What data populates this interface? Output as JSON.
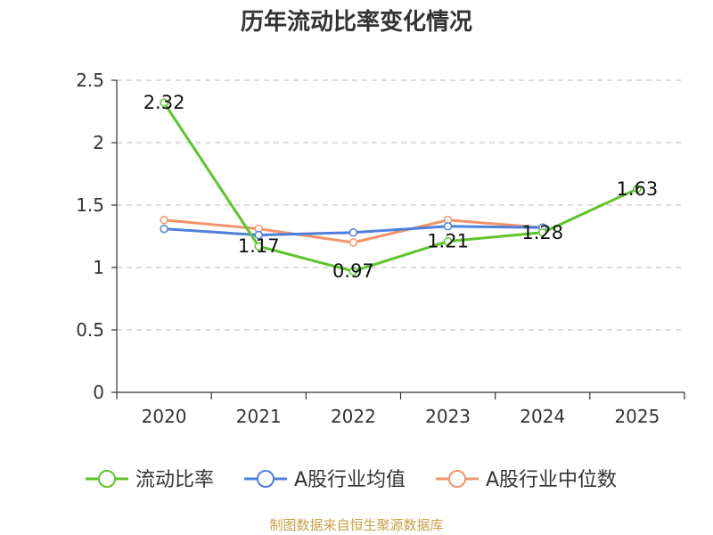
{
  "chart_data": {
    "type": "line",
    "title": "历年流动比率变化情况",
    "categories": [
      "2020",
      "2021",
      "2022",
      "2023",
      "2024",
      "2025"
    ],
    "ylim": [
      0,
      2.5
    ],
    "yticks": [
      "0",
      "0.5",
      "1",
      "1.5",
      "2",
      "2.5"
    ],
    "grid": true,
    "legend_position": "bottom",
    "series": [
      {
        "name": "流动比率",
        "color": "#5cc52a",
        "values": [
          2.32,
          1.17,
          0.97,
          1.21,
          1.28,
          1.63
        ],
        "labels": [
          "2.32",
          "1.17",
          "0.97",
          "1.21",
          "1.28",
          "1.63"
        ]
      },
      {
        "name": "A股行业均值",
        "color": "#4d80dd",
        "values": [
          1.31,
          1.26,
          1.28,
          1.33,
          1.32,
          null
        ]
      },
      {
        "name": "A股行业中位数",
        "color": "#f39468",
        "values": [
          1.38,
          1.31,
          1.2,
          1.38,
          1.32,
          null
        ]
      }
    ]
  },
  "footer": "制图数据来自恒生聚源数据库"
}
